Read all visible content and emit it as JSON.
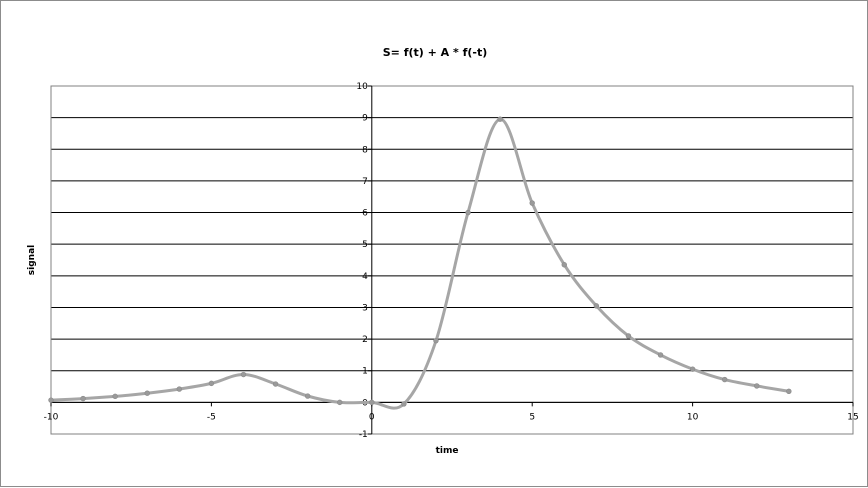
{
  "chart_data": {
    "type": "line",
    "title": "S= f(t) + A * f(-t)",
    "xlabel": "time",
    "ylabel": "signal",
    "xlim": [
      -10,
      15
    ],
    "ylim": [
      -1,
      10
    ],
    "x_ticks": [
      "-10",
      "-5",
      "0",
      "5",
      "10",
      "15"
    ],
    "y_ticks": [
      "-1",
      "0",
      "1",
      "2",
      "3",
      "4",
      "5",
      "6",
      "7",
      "8",
      "9",
      "10"
    ],
    "grid": "horizontal major gridlines",
    "legend": "none",
    "series_color": "#a6a6a6",
    "series": [
      {
        "x": [
          -10,
          -9,
          -8,
          -7,
          -6,
          -5,
          -4,
          -3,
          -2,
          -1,
          0,
          1,
          2,
          3,
          4,
          5,
          6,
          7,
          8,
          9,
          10,
          11,
          12,
          13
        ],
        "y": [
          0.07,
          0.12,
          0.19,
          0.29,
          0.42,
          0.6,
          0.88,
          0.58,
          0.2,
          0.0,
          0.0,
          -0.05,
          1.95,
          6.0,
          8.95,
          6.3,
          4.35,
          3.05,
          2.1,
          1.5,
          1.05,
          0.72,
          0.52,
          0.35
        ]
      }
    ]
  }
}
